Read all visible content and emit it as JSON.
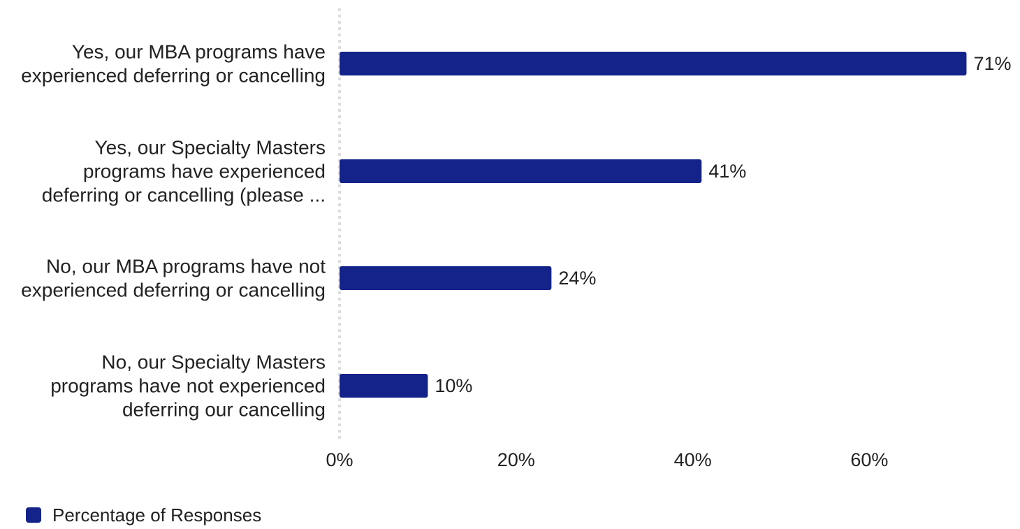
{
  "chart_data": {
    "type": "bar",
    "orientation": "horizontal",
    "categories": [
      [
        "Yes, our MBA programs have",
        "experienced deferring or cancelling"
      ],
      [
        "Yes, our Specialty Masters",
        "programs have experienced",
        "deferring or cancelling (please ..."
      ],
      [
        "No, our MBA programs have not",
        "experienced deferring or cancelling"
      ],
      [
        "No, our Specialty Masters",
        "programs have not experienced",
        "deferring our cancelling"
      ]
    ],
    "series": [
      {
        "name": "Percentage of Responses",
        "values": [
          71,
          41,
          24,
          10
        ],
        "value_labels": [
          "71%",
          "41%",
          "24%",
          "10%"
        ]
      }
    ],
    "xlim": [
      0,
      70
    ],
    "x_ticks": [
      0,
      20,
      40,
      60
    ],
    "x_tick_labels": [
      "0%",
      "20%",
      "40%",
      "60%"
    ],
    "grid": false,
    "legend_position": "bottom-left",
    "colors": {
      "bar": "#14238a",
      "axis": "#dddddd",
      "text": "#222222"
    }
  }
}
